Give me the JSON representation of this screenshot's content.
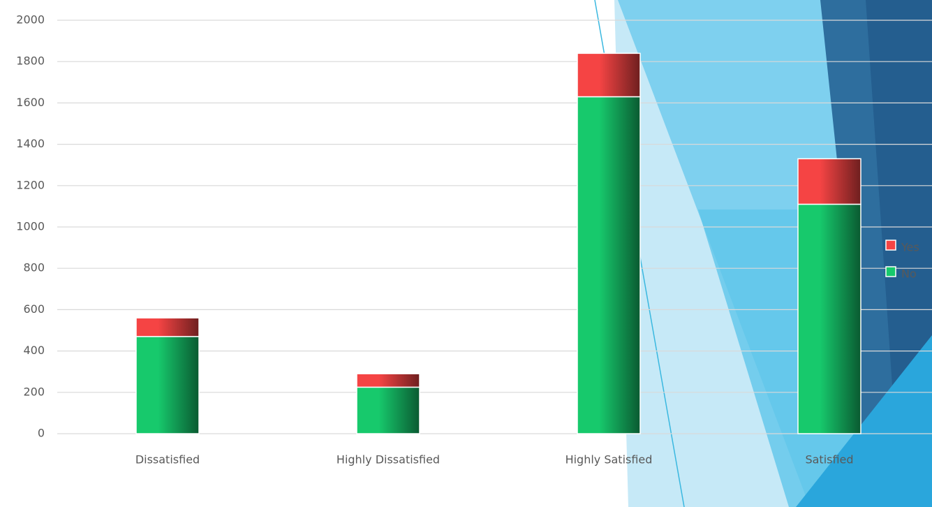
{
  "chart_data": {
    "type": "stacked_bar",
    "categories": [
      "Dissatisfied",
      "Highly Dissatisfied",
      "Highly Satisfied",
      "Satisfied"
    ],
    "series": [
      {
        "name": "No",
        "color": "#17c96c",
        "values": [
          470,
          225,
          1630,
          1110
        ]
      },
      {
        "name": "Yes",
        "color": "#f54444",
        "values": [
          90,
          65,
          210,
          220
        ]
      }
    ],
    "ylim": [
      0,
      2000
    ],
    "yticks": [
      0,
      200,
      400,
      600,
      800,
      1000,
      1200,
      1400,
      1600,
      1800,
      2000
    ],
    "grid": true,
    "legend": "right"
  }
}
